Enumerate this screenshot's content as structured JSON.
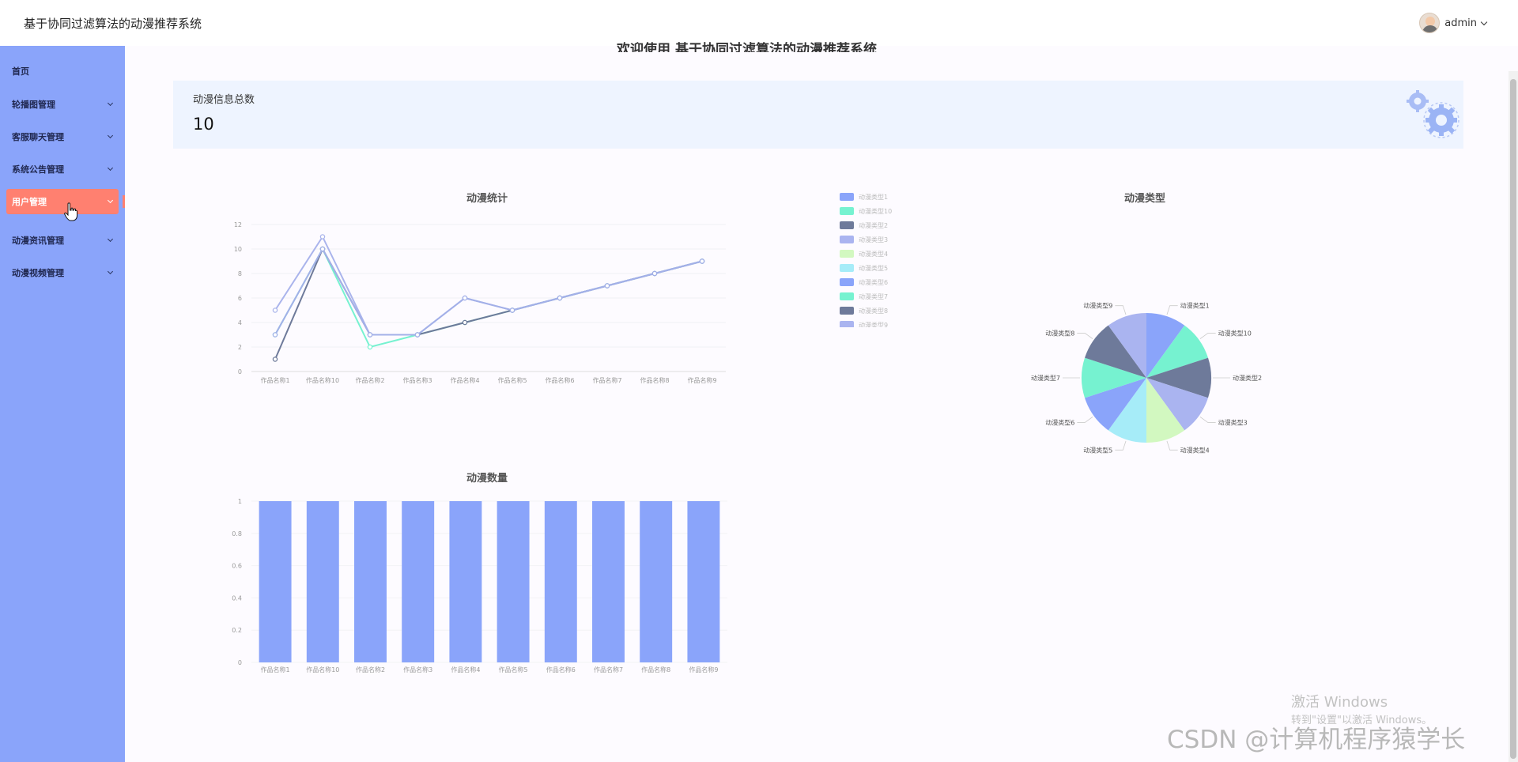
{
  "app": {
    "title": "基于协同过滤算法的动漫推荐系统",
    "user": "admin"
  },
  "sidebar": {
    "items": [
      {
        "label": "首页",
        "has_children": false
      },
      {
        "label": "轮播图管理",
        "has_children": true
      },
      {
        "label": "客服聊天管理",
        "has_children": true
      },
      {
        "label": "系统公告管理",
        "has_children": true
      },
      {
        "label": "用户管理",
        "has_children": true,
        "active": true
      },
      {
        "label": "动漫资讯管理",
        "has_children": true
      },
      {
        "label": "动漫视频管理",
        "has_children": true
      }
    ]
  },
  "main": {
    "welcome": "欢迎使用 基于协同过滤算法的动漫推荐系统",
    "stat": {
      "label": "动漫信息总数",
      "value": "10"
    }
  },
  "colors": {
    "sidebar": "#8aa4fa",
    "active": "#ff8070",
    "card": "#eef4ff"
  },
  "chart_data": [
    {
      "type": "line",
      "title": "动漫统计",
      "categories": [
        "作品名称1",
        "作品名称10",
        "作品名称2",
        "作品名称3",
        "作品名称4",
        "作品名称5",
        "作品名称6",
        "作品名称7",
        "作品名称8",
        "作品名称9"
      ],
      "series": [
        {
          "name": "",
          "values": [
            3,
            10,
            2,
            3,
            4,
            5,
            6,
            7,
            8,
            9
          ],
          "color": "#76f2d0"
        },
        {
          "name": "",
          "values": [
            1,
            10,
            3,
            3,
            4,
            5,
            6,
            7,
            8,
            9
          ],
          "color": "#6e7a9a"
        },
        {
          "name": "",
          "values": [
            5,
            11,
            3,
            3,
            6,
            5,
            6,
            7,
            8,
            9
          ],
          "color": "#aab4ec"
        },
        {
          "name": "",
          "values": [
            3,
            10,
            3,
            3,
            6,
            5,
            6,
            7,
            8,
            9
          ],
          "color": "#a3b0e8"
        }
      ],
      "yticks": [
        "0",
        "2",
        "4",
        "6",
        "8",
        "10",
        "12"
      ],
      "ylim": [
        0,
        12
      ]
    },
    {
      "type": "pie",
      "title": "动漫类型",
      "legend_placement": "left",
      "slices": [
        {
          "label": "动漫类型1",
          "value": 1,
          "color": "#8aa4fa"
        },
        {
          "label": "动漫类型10",
          "value": 1,
          "color": "#76f2d0"
        },
        {
          "label": "动漫类型2",
          "value": 1,
          "color": "#6e7a9a"
        },
        {
          "label": "动漫类型3",
          "value": 1,
          "color": "#aab4f0"
        },
        {
          "label": "动漫类型4",
          "value": 1,
          "color": "#d2f8c0"
        },
        {
          "label": "动漫类型5",
          "value": 1,
          "color": "#a6ecf8"
        },
        {
          "label": "动漫类型6",
          "value": 1,
          "color": "#8aa4fa"
        },
        {
          "label": "动漫类型7",
          "value": 1,
          "color": "#76f2d0"
        },
        {
          "label": "动漫类型8",
          "value": 1,
          "color": "#6e7a9a"
        },
        {
          "label": "动漫类型9",
          "value": 1,
          "color": "#aab4f0"
        }
      ]
    },
    {
      "type": "bar",
      "title": "动漫数量",
      "categories": [
        "作品名称1",
        "作品名称10",
        "作品名称2",
        "作品名称3",
        "作品名称4",
        "作品名称5",
        "作品名称6",
        "作品名称7",
        "作品名称8",
        "作品名称9"
      ],
      "values": [
        1,
        1,
        1,
        1,
        1,
        1,
        1,
        1,
        1,
        1
      ],
      "yticks": [
        "0",
        "0.2",
        "0.4",
        "0.6",
        "0.8",
        "1"
      ],
      "ylim": [
        0,
        1
      ],
      "color": "#8aa4fa"
    }
  ],
  "watermarks": {
    "activate_title": "激活 Windows",
    "activate_sub": "转到\"设置\"以激活 Windows。",
    "csdn": "CSDN @计算机程序猿学长"
  }
}
